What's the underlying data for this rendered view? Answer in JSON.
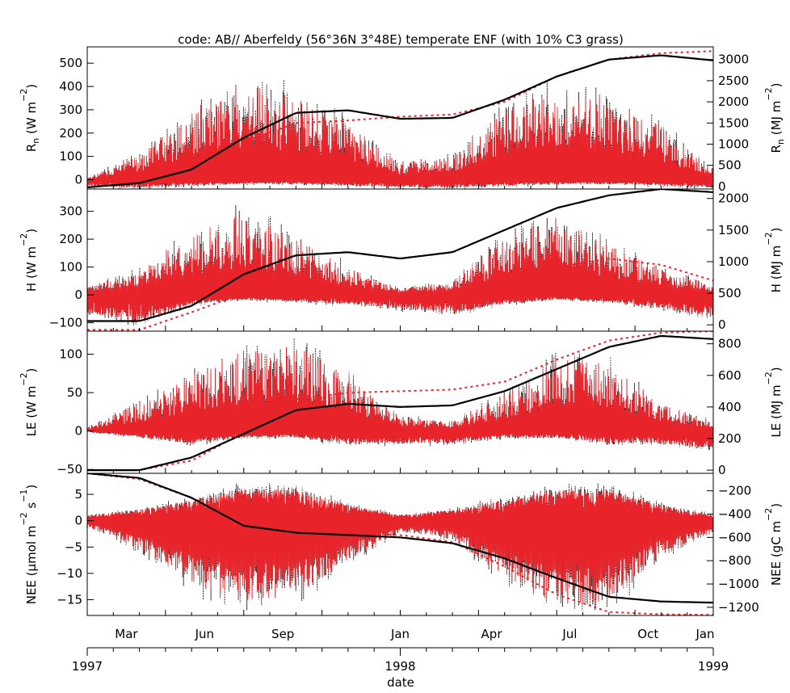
{
  "title": "code: AB// Aberfeldy (56°36N 3°48E) temperate ENF (with 10% C3 grass)",
  "xlabel": "date",
  "month_labels": [
    "Mar",
    "Jun",
    "Sep",
    "Jan",
    "Apr",
    "Jul",
    "Oct",
    "Jan"
  ],
  "year_labels": [
    "1997",
    "1998",
    "1999"
  ],
  "chart_data": [
    {
      "type": "line",
      "panel": "Rn",
      "ylabel_left": "R",
      "ylabel_left_sub": "n",
      "ylabel_left_unit": "(W m",
      "ylabel_left_sup": "−2",
      "ylabel_left_close": ")",
      "ylabel_right": "R",
      "ylabel_right_sub": "n",
      "ylabel_right_unit": "(MJ m",
      "ylabel_right_sup": "−2",
      "ylabel_right_close": ")",
      "ylim_left": [
        -40,
        570
      ],
      "ylim_right": [
        -60,
        3300
      ],
      "yticks_left": [
        "500",
        "400",
        "300",
        "200",
        "100",
        "0"
      ],
      "yticks_left_values": [
        500,
        400,
        300,
        200,
        100,
        0
      ],
      "yticks_right": [
        "3000",
        "2500",
        "2000",
        "1500",
        "1000",
        "500",
        "0"
      ],
      "yticks_right_values": [
        3000,
        2500,
        2000,
        1500,
        1000,
        500,
        0
      ],
      "x_months": [
        0,
        2,
        4,
        6,
        8,
        10,
        12,
        14,
        16,
        18,
        20,
        22,
        24
      ],
      "cumulative_observed_right": [
        -20,
        80,
        400,
        1150,
        1740,
        1800,
        1600,
        1620,
        2050,
        2600,
        3000,
        3100,
        2980
      ],
      "cumulative_model_right": [
        -20,
        80,
        380,
        1050,
        1500,
        1560,
        1650,
        1700,
        2000,
        2600,
        3000,
        3150,
        3200
      ],
      "diurnal_peak_envelope_left": [
        5,
        90,
        250,
        350,
        300,
        200,
        60,
        80,
        250,
        350,
        300,
        190,
        40
      ],
      "noise_baseline_left": [
        -20,
        -20,
        -15,
        -10,
        -10,
        -15,
        -20,
        -20,
        -15,
        -10,
        -10,
        -15,
        -20
      ]
    },
    {
      "type": "line",
      "panel": "H",
      "ylabel_left": "H",
      "ylabel_left_unit": "(W m",
      "ylabel_left_sup": "−2",
      "ylabel_left_close": ")",
      "ylabel_right": "H",
      "ylabel_right_unit": "(MJ m",
      "ylabel_right_sup": "−2",
      "ylabel_right_close": ")",
      "ylim_left": [
        -130,
        380
      ],
      "ylim_right": [
        -100,
        2150
      ],
      "yticks_left": [
        "300",
        "200",
        "100",
        "0",
        "−100"
      ],
      "yticks_left_values": [
        300,
        200,
        100,
        0,
        -100
      ],
      "yticks_right": [
        "2000",
        "1500",
        "1000",
        "500",
        "0"
      ],
      "yticks_right_values": [
        2000,
        1500,
        1000,
        500,
        0
      ],
      "x_months": [
        0,
        2,
        4,
        6,
        8,
        10,
        12,
        14,
        16,
        18,
        20,
        22,
        24
      ],
      "cumulative_observed_right": [
        60,
        60,
        300,
        800,
        1100,
        1150,
        1050,
        1150,
        1500,
        1850,
        2050,
        2150,
        2100
      ],
      "cumulative_model_right": [
        -80,
        -80,
        200,
        500,
        560,
        500,
        430,
        500,
        600,
        900,
        1050,
        950,
        700
      ],
      "diurnal_peak_envelope_left": [
        20,
        80,
        180,
        250,
        170,
        80,
        20,
        40,
        180,
        230,
        150,
        80,
        30
      ],
      "noise_baseline_left": [
        -40,
        -60,
        -20,
        -10,
        -15,
        -20,
        -30,
        -40,
        -20,
        -10,
        -15,
        -30,
        -50
      ]
    },
    {
      "type": "line",
      "panel": "LE",
      "ylabel_left": "LE",
      "ylabel_left_unit": "(W m",
      "ylabel_left_sup": "−2",
      "ylabel_left_close": ")",
      "ylabel_right": "LE",
      "ylabel_right_unit": "(MJ m",
      "ylabel_right_sup": "−2",
      "ylabel_right_close": ")",
      "ylim_left": [
        -55,
        130
      ],
      "ylim_right": [
        -20,
        880
      ],
      "yticks_left": [
        "100",
        "50",
        "0",
        "−50"
      ],
      "yticks_left_values": [
        100,
        50,
        0,
        -50
      ],
      "yticks_right": [
        "800",
        "600",
        "400",
        "200",
        "0"
      ],
      "yticks_right_values": [
        800,
        600,
        400,
        200,
        0
      ],
      "x_months": [
        0,
        2,
        4,
        6,
        8,
        10,
        12,
        14,
        16,
        18,
        20,
        22,
        24
      ],
      "cumulative_observed_right": [
        0,
        0,
        80,
        230,
        380,
        420,
        400,
        410,
        500,
        640,
        780,
        850,
        830
      ],
      "cumulative_model_right": [
        0,
        0,
        60,
        240,
        450,
        490,
        500,
        510,
        560,
        700,
        820,
        870,
        880
      ],
      "diurnal_peak_envelope_left": [
        5,
        30,
        60,
        90,
        95,
        60,
        15,
        10,
        40,
        80,
        75,
        30,
        10
      ],
      "noise_baseline_left": [
        0,
        -5,
        -10,
        -5,
        -5,
        -10,
        -10,
        -10,
        -5,
        -5,
        -10,
        -10,
        -15
      ]
    },
    {
      "type": "line",
      "panel": "NEE",
      "ylabel_left": "NEE",
      "ylabel_left_unit": "(μmol m",
      "ylabel_left_sup": "−2",
      "ylabel_left_mid": " s",
      "ylabel_left_sup2": "−1",
      "ylabel_left_close": ")",
      "ylabel_right": "NEE",
      "ylabel_right_unit": "(gC m",
      "ylabel_right_sup": "−2",
      "ylabel_right_close": ")",
      "ylim_left": [
        -18,
        9
      ],
      "ylim_right": [
        -1270,
        -50
      ],
      "yticks_left": [
        "5",
        "0",
        "−5",
        "−10",
        "−15"
      ],
      "yticks_left_values": [
        5,
        0,
        -5,
        -10,
        -15
      ],
      "yticks_right": [
        "−200",
        "−400",
        "−600",
        "−800",
        "−1000",
        "−1200"
      ],
      "yticks_right_values": [
        -200,
        -400,
        -600,
        -800,
        -1000,
        -1200
      ],
      "x_months": [
        0,
        2,
        4,
        6,
        8,
        10,
        12,
        14,
        16,
        18,
        20,
        22,
        24
      ],
      "cumulative_observed_right": [
        -50,
        -90,
        -260,
        -500,
        -560,
        -580,
        -600,
        -650,
        -780,
        -950,
        -1110,
        -1150,
        -1160
      ],
      "cumulative_model_right": [
        -50,
        -100,
        -260,
        -460,
        -560,
        -560,
        -580,
        -640,
        -850,
        -1090,
        -1240,
        -1260,
        -1265
      ],
      "diurnal_uptake_envelope_left": [
        -1,
        -5,
        -11,
        -14,
        -13,
        -7,
        -2,
        -3,
        -10,
        -15,
        -14,
        -6,
        -2
      ],
      "diurnal_release_envelope_left": [
        1,
        2,
        4,
        6,
        6,
        3,
        1,
        2,
        4,
        6,
        6,
        3,
        1
      ]
    }
  ]
}
